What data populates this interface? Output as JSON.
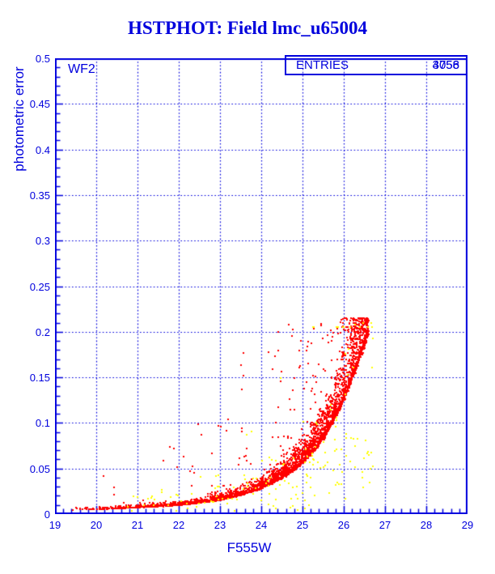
{
  "title": "HSTPHOT: Field lmc_u65004",
  "annotations": {
    "detector": "WF2",
    "entries_label": "ENTRIES",
    "entries_values": [
      "3058",
      "4756"
    ]
  },
  "colors": {
    "axis_blue": "#0000dd",
    "title_blue": "#0000dd",
    "point_red": "#ff0000",
    "point_yellow": "#ffff00",
    "background": "#ffffff"
  },
  "chart_data": {
    "type": "scatter",
    "title": "HSTPHOT: Field lmc_u65004",
    "xlabel": "F555W",
    "ylabel": "photometric error",
    "xlim": [
      19,
      29
    ],
    "ylim": [
      0,
      0.5
    ],
    "x_tick_labels": [
      "19",
      "20",
      "21",
      "22",
      "23",
      "24",
      "25",
      "26",
      "27",
      "28",
      "29"
    ],
    "x_tick_values": [
      19,
      20,
      21,
      22,
      23,
      24,
      25,
      26,
      27,
      28,
      29
    ],
    "y_tick_labels": [
      "0",
      "0.05",
      "0.1",
      "0.15",
      "0.2",
      "0.25",
      "0.3",
      "0.35",
      "0.4",
      "0.45",
      "0.5"
    ],
    "y_tick_values": [
      0,
      0.05,
      0.1,
      0.15,
      0.2,
      0.25,
      0.3,
      0.35,
      0.4,
      0.45,
      0.5
    ],
    "x_minor_step": 0.2,
    "y_minor_step": 0.01,
    "grid": "dotted-at-major-ticks",
    "legend_position": "top-right-box",
    "entries": [
      3058,
      4756
    ],
    "error_locus": {
      "mag": [
        19,
        20,
        21,
        22,
        23,
        24,
        24.5,
        25,
        25.5,
        26,
        26.3,
        26.6
      ],
      "err": [
        0.0045,
        0.0055,
        0.0075,
        0.01,
        0.016,
        0.029,
        0.041,
        0.058,
        0.085,
        0.13,
        0.165,
        0.205
      ]
    },
    "series": [
      {
        "name": "WF2 detections",
        "color": "#ff0000",
        "n_points": 4000,
        "mag_range": [
          19,
          26.6
        ],
        "err_cap": 0.215,
        "marker": "2px square",
        "description": "dense error-vs-magnitude locus rising from ~0.004 at mag 19 to ~0.215 at mag 26.6, with sparse outliers above the locus"
      },
      {
        "name": "flagged detections",
        "color": "#ffff00",
        "n_points": 175,
        "mag_range": [
          20.2,
          26.7
        ],
        "err_range": [
          0.002,
          0.21
        ],
        "marker": "2px square",
        "description": "sparse points mostly at low error below/around the red locus at faint magnitudes"
      }
    ]
  }
}
